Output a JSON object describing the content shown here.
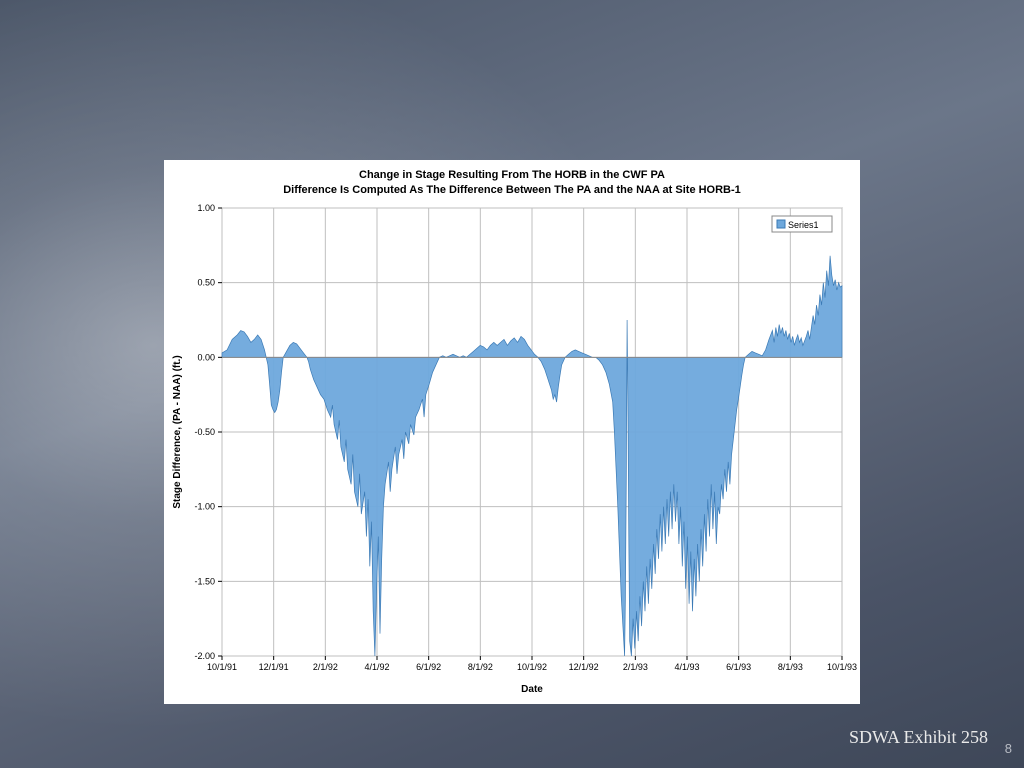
{
  "slide": {
    "background_gradient": [
      "#4b5668",
      "#6b7689",
      "#3e4758"
    ],
    "exhibit_label": "SDWA Exhibit 258",
    "page_number": "8"
  },
  "chart": {
    "type": "area",
    "title_line1": "Change in Stage Resulting From The HORB in the CWF PA",
    "title_line2": "Difference Is Computed As The Difference Between The PA and the NAA at Site HORB-1",
    "title_fontsize": 11,
    "xlabel": "Date",
    "ylabel": "Stage Difference, (PA - NAA) (ft.)",
    "label_fontsize": 10,
    "series_name": "Series1",
    "series_color": "#6ea8dc",
    "series_edge_color": "#3b7ab5",
    "background_color": "#ffffff",
    "grid_color": "#bfbfbf",
    "ylim": [
      -2.0,
      1.0
    ],
    "ytick_step": 0.5,
    "yticks": [
      -2.0,
      -1.5,
      -1.0,
      -0.5,
      0.0,
      0.5,
      1.0
    ],
    "x_categories": [
      "10/1/91",
      "12/1/91",
      "2/1/92",
      "4/1/92",
      "6/1/92",
      "8/1/92",
      "10/1/92",
      "12/1/92",
      "2/1/93",
      "4/1/93",
      "6/1/93",
      "8/1/93",
      "10/1/93"
    ],
    "x_index_range": [
      0,
      730
    ],
    "legend": {
      "position": "top-right",
      "items": [
        "Series1"
      ],
      "swatch_color": "#6ea8dc"
    },
    "data": [
      [
        0,
        0.03
      ],
      [
        6,
        0.05
      ],
      [
        12,
        0.12
      ],
      [
        18,
        0.15
      ],
      [
        22,
        0.18
      ],
      [
        26,
        0.17
      ],
      [
        30,
        0.14
      ],
      [
        34,
        0.1
      ],
      [
        38,
        0.12
      ],
      [
        42,
        0.15
      ],
      [
        46,
        0.12
      ],
      [
        50,
        0.05
      ],
      [
        54,
        -0.05
      ],
      [
        56,
        -0.18
      ],
      [
        58,
        -0.32
      ],
      [
        60,
        -0.35
      ],
      [
        62,
        -0.37
      ],
      [
        64,
        -0.35
      ],
      [
        66,
        -0.3
      ],
      [
        68,
        -0.22
      ],
      [
        70,
        -0.1
      ],
      [
        72,
        0.0
      ],
      [
        76,
        0.04
      ],
      [
        80,
        0.08
      ],
      [
        84,
        0.1
      ],
      [
        88,
        0.09
      ],
      [
        92,
        0.06
      ],
      [
        96,
        0.03
      ],
      [
        100,
        0.0
      ],
      [
        102,
        -0.03
      ],
      [
        104,
        -0.08
      ],
      [
        108,
        -0.15
      ],
      [
        112,
        -0.2
      ],
      [
        116,
        -0.25
      ],
      [
        120,
        -0.28
      ],
      [
        124,
        -0.35
      ],
      [
        128,
        -0.4
      ],
      [
        130,
        -0.32
      ],
      [
        132,
        -0.45
      ],
      [
        136,
        -0.55
      ],
      [
        138,
        -0.42
      ],
      [
        140,
        -0.6
      ],
      [
        144,
        -0.7
      ],
      [
        146,
        -0.55
      ],
      [
        148,
        -0.75
      ],
      [
        152,
        -0.85
      ],
      [
        154,
        -0.65
      ],
      [
        156,
        -0.9
      ],
      [
        160,
        -1.0
      ],
      [
        162,
        -0.78
      ],
      [
        164,
        -1.05
      ],
      [
        168,
        -0.9
      ],
      [
        170,
        -1.2
      ],
      [
        172,
        -0.95
      ],
      [
        174,
        -1.4
      ],
      [
        176,
        -1.1
      ],
      [
        178,
        -1.7
      ],
      [
        180,
        -2.0
      ],
      [
        182,
        -1.55
      ],
      [
        184,
        -1.2
      ],
      [
        186,
        -1.85
      ],
      [
        188,
        -1.35
      ],
      [
        190,
        -1.0
      ],
      [
        192,
        -0.85
      ],
      [
        196,
        -0.7
      ],
      [
        198,
        -0.9
      ],
      [
        200,
        -0.75
      ],
      [
        204,
        -0.6
      ],
      [
        206,
        -0.78
      ],
      [
        208,
        -0.65
      ],
      [
        212,
        -0.55
      ],
      [
        214,
        -0.68
      ],
      [
        216,
        -0.5
      ],
      [
        220,
        -0.58
      ],
      [
        222,
        -0.45
      ],
      [
        226,
        -0.52
      ],
      [
        228,
        -0.4
      ],
      [
        232,
        -0.35
      ],
      [
        236,
        -0.28
      ],
      [
        238,
        -0.4
      ],
      [
        240,
        -0.25
      ],
      [
        244,
        -0.18
      ],
      [
        248,
        -0.1
      ],
      [
        252,
        -0.05
      ],
      [
        256,
        0.0
      ],
      [
        260,
        0.01
      ],
      [
        264,
        0.0
      ],
      [
        268,
        0.01
      ],
      [
        272,
        0.02
      ],
      [
        276,
        0.01
      ],
      [
        280,
        0.0
      ],
      [
        284,
        0.01
      ],
      [
        288,
        0.0
      ],
      [
        292,
        0.02
      ],
      [
        296,
        0.04
      ],
      [
        300,
        0.06
      ],
      [
        304,
        0.08
      ],
      [
        308,
        0.07
      ],
      [
        312,
        0.05
      ],
      [
        316,
        0.08
      ],
      [
        320,
        0.1
      ],
      [
        324,
        0.08
      ],
      [
        328,
        0.1
      ],
      [
        332,
        0.12
      ],
      [
        336,
        0.08
      ],
      [
        340,
        0.11
      ],
      [
        344,
        0.13
      ],
      [
        348,
        0.1
      ],
      [
        352,
        0.14
      ],
      [
        356,
        0.12
      ],
      [
        360,
        0.08
      ],
      [
        364,
        0.05
      ],
      [
        368,
        0.02
      ],
      [
        372,
        0.0
      ],
      [
        376,
        -0.03
      ],
      [
        380,
        -0.08
      ],
      [
        384,
        -0.15
      ],
      [
        388,
        -0.22
      ],
      [
        390,
        -0.28
      ],
      [
        392,
        -0.25
      ],
      [
        394,
        -0.3
      ],
      [
        396,
        -0.2
      ],
      [
        398,
        -0.12
      ],
      [
        400,
        -0.05
      ],
      [
        404,
        0.0
      ],
      [
        408,
        0.02
      ],
      [
        412,
        0.04
      ],
      [
        416,
        0.05
      ],
      [
        420,
        0.04
      ],
      [
        424,
        0.03
      ],
      [
        428,
        0.02
      ],
      [
        432,
        0.01
      ],
      [
        436,
        0.0
      ],
      [
        440,
        0.0
      ],
      [
        444,
        -0.02
      ],
      [
        448,
        -0.05
      ],
      [
        452,
        -0.1
      ],
      [
        456,
        -0.18
      ],
      [
        460,
        -0.3
      ],
      [
        462,
        -0.5
      ],
      [
        464,
        -0.75
      ],
      [
        466,
        -1.0
      ],
      [
        468,
        -1.3
      ],
      [
        470,
        -1.6
      ],
      [
        472,
        -1.8
      ],
      [
        474,
        -2.0
      ],
      [
        475,
        -1.6
      ],
      [
        476,
        -0.8
      ],
      [
        477,
        0.25
      ],
      [
        478,
        -0.4
      ],
      [
        479,
        -1.2
      ],
      [
        480,
        -1.9
      ],
      [
        482,
        -2.0
      ],
      [
        484,
        -1.75
      ],
      [
        486,
        -1.95
      ],
      [
        488,
        -1.7
      ],
      [
        490,
        -1.9
      ],
      [
        492,
        -1.6
      ],
      [
        494,
        -1.8
      ],
      [
        496,
        -1.5
      ],
      [
        498,
        -1.7
      ],
      [
        500,
        -1.4
      ],
      [
        502,
        -1.65
      ],
      [
        504,
        -1.35
      ],
      [
        506,
        -1.55
      ],
      [
        508,
        -1.25
      ],
      [
        510,
        -1.45
      ],
      [
        512,
        -1.15
      ],
      [
        514,
        -1.35
      ],
      [
        516,
        -1.05
      ],
      [
        518,
        -1.3
      ],
      [
        520,
        -1.0
      ],
      [
        522,
        -1.25
      ],
      [
        524,
        -0.95
      ],
      [
        526,
        -1.2
      ],
      [
        528,
        -0.9
      ],
      [
        530,
        -1.15
      ],
      [
        532,
        -0.85
      ],
      [
        534,
        -1.1
      ],
      [
        536,
        -0.9
      ],
      [
        538,
        -1.25
      ],
      [
        540,
        -1.0
      ],
      [
        542,
        -1.4
      ],
      [
        544,
        -1.1
      ],
      [
        546,
        -1.55
      ],
      [
        548,
        -1.2
      ],
      [
        550,
        -1.65
      ],
      [
        552,
        -1.3
      ],
      [
        554,
        -1.7
      ],
      [
        556,
        -1.35
      ],
      [
        558,
        -1.6
      ],
      [
        560,
        -1.25
      ],
      [
        562,
        -1.5
      ],
      [
        564,
        -1.15
      ],
      [
        566,
        -1.4
      ],
      [
        568,
        -1.05
      ],
      [
        570,
        -1.3
      ],
      [
        572,
        -0.95
      ],
      [
        574,
        -1.2
      ],
      [
        576,
        -0.85
      ],
      [
        578,
        -1.15
      ],
      [
        580,
        -0.9
      ],
      [
        582,
        -1.25
      ],
      [
        584,
        -1.0
      ],
      [
        586,
        -1.05
      ],
      [
        588,
        -0.85
      ],
      [
        590,
        -0.95
      ],
      [
        592,
        -0.75
      ],
      [
        594,
        -0.9
      ],
      [
        596,
        -0.7
      ],
      [
        598,
        -0.85
      ],
      [
        600,
        -0.65
      ],
      [
        602,
        -0.55
      ],
      [
        604,
        -0.45
      ],
      [
        606,
        -0.35
      ],
      [
        608,
        -0.28
      ],
      [
        610,
        -0.2
      ],
      [
        612,
        -0.12
      ],
      [
        614,
        -0.05
      ],
      [
        616,
        0.0
      ],
      [
        620,
        0.02
      ],
      [
        624,
        0.04
      ],
      [
        628,
        0.03
      ],
      [
        632,
        0.02
      ],
      [
        636,
        0.01
      ],
      [
        640,
        0.05
      ],
      [
        644,
        0.12
      ],
      [
        648,
        0.18
      ],
      [
        650,
        0.1
      ],
      [
        652,
        0.2
      ],
      [
        654,
        0.14
      ],
      [
        656,
        0.22
      ],
      [
        658,
        0.16
      ],
      [
        660,
        0.2
      ],
      [
        662,
        0.14
      ],
      [
        664,
        0.18
      ],
      [
        666,
        0.12
      ],
      [
        668,
        0.16
      ],
      [
        670,
        0.1
      ],
      [
        672,
        0.14
      ],
      [
        674,
        0.08
      ],
      [
        676,
        0.12
      ],
      [
        678,
        0.15
      ],
      [
        680,
        0.1
      ],
      [
        682,
        0.13
      ],
      [
        684,
        0.08
      ],
      [
        686,
        0.11
      ],
      [
        688,
        0.14
      ],
      [
        690,
        0.18
      ],
      [
        692,
        0.12
      ],
      [
        694,
        0.2
      ],
      [
        696,
        0.28
      ],
      [
        698,
        0.22
      ],
      [
        700,
        0.35
      ],
      [
        702,
        0.28
      ],
      [
        704,
        0.42
      ],
      [
        706,
        0.35
      ],
      [
        708,
        0.5
      ],
      [
        710,
        0.4
      ],
      [
        712,
        0.58
      ],
      [
        714,
        0.48
      ],
      [
        716,
        0.68
      ],
      [
        718,
        0.55
      ],
      [
        720,
        0.48
      ],
      [
        722,
        0.52
      ],
      [
        724,
        0.45
      ],
      [
        726,
        0.5
      ],
      [
        728,
        0.47
      ],
      [
        730,
        0.48
      ]
    ]
  }
}
